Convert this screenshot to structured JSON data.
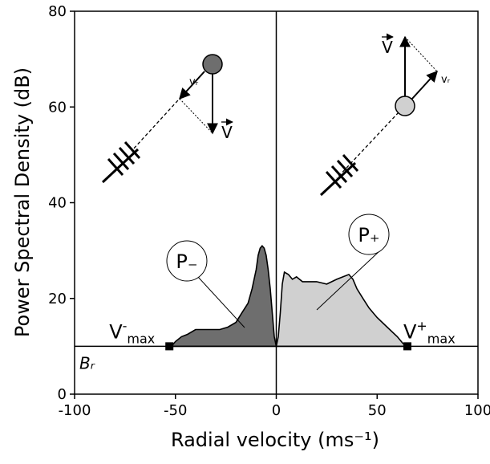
{
  "chart_data": {
    "type": "area",
    "xlabel": "Radial velocity (ms⁻¹)",
    "ylabel": "Power Spectral Density (dB)",
    "xlim": [
      -100,
      100
    ],
    "ylim": [
      0,
      80
    ],
    "xticks": [
      -100,
      -50,
      0,
      50,
      100
    ],
    "yticks": [
      0,
      20,
      40,
      60,
      80
    ],
    "baseline": 10,
    "baseline_label": "Bᵣ",
    "series": [
      {
        "name": "P₋",
        "color": "#6e6e6e",
        "x": [
          -52,
          -50,
          -47,
          -44,
          -40,
          -36,
          -32,
          -28,
          -24,
          -20,
          -17,
          -14,
          -12,
          -10,
          -9,
          -8,
          -7,
          -6,
          -5,
          -4,
          -3,
          -2,
          -1,
          0
        ],
        "y": [
          10,
          11,
          12,
          12.5,
          13.5,
          13.5,
          13.5,
          13.5,
          14,
          15,
          17,
          19,
          22,
          26,
          29,
          30.5,
          31,
          30.5,
          29,
          26,
          22,
          17,
          12,
          10
        ]
      },
      {
        "name": "P₊",
        "color": "#d0d0d0",
        "x": [
          0,
          1,
          2,
          3,
          4,
          6,
          8,
          10,
          13,
          16,
          20,
          25,
          30,
          33,
          36,
          38,
          40,
          43,
          46,
          50,
          55,
          60,
          63,
          65
        ],
        "y": [
          10,
          12,
          17,
          23,
          25.5,
          25,
          24,
          24.5,
          23.5,
          23.5,
          23.5,
          23,
          24,
          24.5,
          25,
          24,
          22,
          20,
          18,
          16,
          14,
          12,
          10.5,
          10
        ]
      }
    ],
    "markers": [
      {
        "x": -53,
        "y": 10,
        "label": {
          "text": "V",
          "superscript": "-",
          "subscript": "max"
        }
      },
      {
        "x": 65,
        "y": 10,
        "label": {
          "text": "V",
          "superscript": "+",
          "subscript": "max"
        }
      }
    ],
    "diagram_labels": {
      "velocity": "V",
      "radial": "vᵣ"
    }
  }
}
